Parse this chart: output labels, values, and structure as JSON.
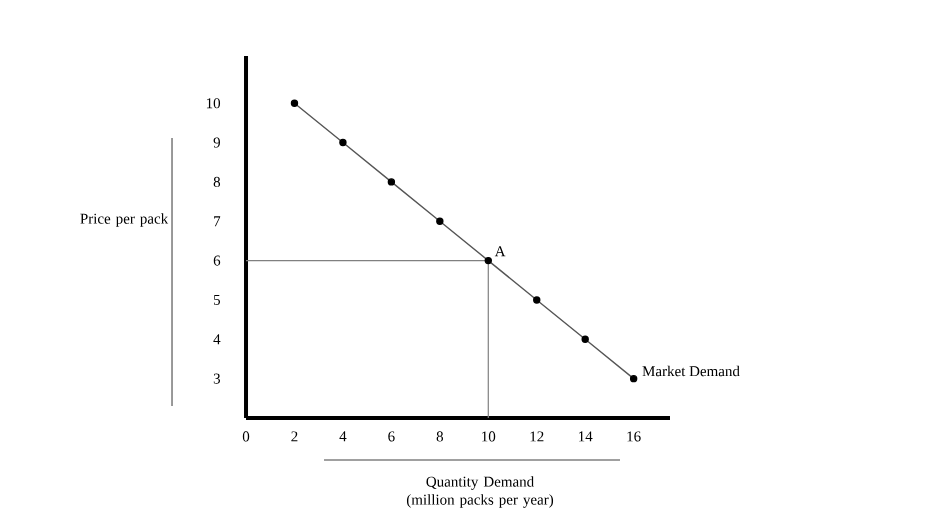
{
  "chart_data": {
    "type": "line",
    "xlabel": "Quantity Demand (million packs per year)",
    "ylabel": "Price per pack",
    "x": [
      2,
      4,
      6,
      8,
      10,
      12,
      14,
      16
    ],
    "series": [
      {
        "name": "Market Demand",
        "color": "#555555",
        "values": [
          10,
          9,
          8,
          7,
          6,
          5,
          4,
          3
        ]
      }
    ],
    "marker": "circle",
    "xlim": [
      0,
      17.5
    ],
    "ylim": [
      2,
      11.2
    ],
    "xticks": [
      0,
      2,
      4,
      6,
      8,
      10,
      12,
      14,
      16
    ],
    "yticks": [
      3,
      4,
      5,
      6,
      7,
      8,
      9,
      10
    ],
    "ref_lines": [
      {
        "axis": "y",
        "value": 6,
        "label": null,
        "color": "#808080"
      },
      {
        "axis": "x",
        "value": 10,
        "label": null,
        "color": "#808080"
      }
    ],
    "annotations": [
      {
        "text": "A",
        "x": 10,
        "y": 6
      }
    ],
    "grid": false,
    "legend": false
  }
}
